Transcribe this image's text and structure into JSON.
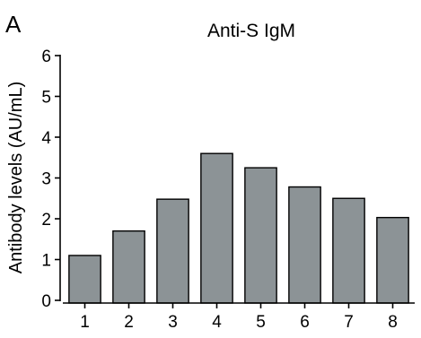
{
  "panel_label": "A",
  "chart_data": {
    "type": "bar",
    "title": "Anti-S IgM",
    "xlabel": "",
    "ylabel": "Antibody levels (AU/mL)",
    "categories": [
      "1",
      "2",
      "3",
      "4",
      "5",
      "6",
      "7",
      "8"
    ],
    "values": [
      1.1,
      1.7,
      2.48,
      3.6,
      3.25,
      2.78,
      2.5,
      2.03
    ],
    "ylim": [
      0,
      6
    ],
    "yticks": [
      "0",
      "1",
      "2",
      "3",
      "4",
      "5",
      "6"
    ],
    "grid": false,
    "bar_color": "#8c9396",
    "bar_edge_color": "#000000"
  }
}
